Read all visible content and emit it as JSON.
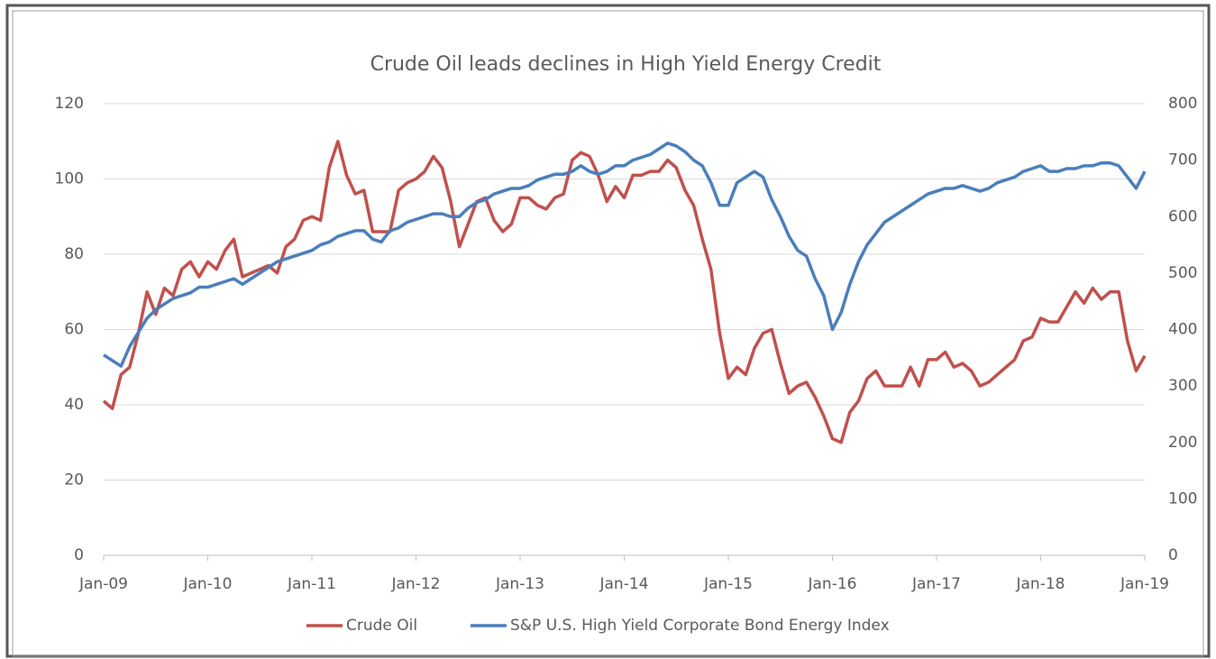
{
  "chart_data": {
    "type": "line",
    "title": "Crude Oil leads declines in High Yield Energy Credit",
    "x": [
      "2009-01",
      "2009-02",
      "2009-03",
      "2009-04",
      "2009-05",
      "2009-06",
      "2009-07",
      "2009-08",
      "2009-09",
      "2009-10",
      "2009-11",
      "2009-12",
      "2010-01",
      "2010-02",
      "2010-03",
      "2010-04",
      "2010-05",
      "2010-06",
      "2010-07",
      "2010-08",
      "2010-09",
      "2010-10",
      "2010-11",
      "2010-12",
      "2011-01",
      "2011-02",
      "2011-03",
      "2011-04",
      "2011-05",
      "2011-06",
      "2011-07",
      "2011-08",
      "2011-09",
      "2011-10",
      "2011-11",
      "2011-12",
      "2012-01",
      "2012-02",
      "2012-03",
      "2012-04",
      "2012-05",
      "2012-06",
      "2012-07",
      "2012-08",
      "2012-09",
      "2012-10",
      "2012-11",
      "2012-12",
      "2013-01",
      "2013-02",
      "2013-03",
      "2013-04",
      "2013-05",
      "2013-06",
      "2013-07",
      "2013-08",
      "2013-09",
      "2013-10",
      "2013-11",
      "2013-12",
      "2014-01",
      "2014-02",
      "2014-03",
      "2014-04",
      "2014-05",
      "2014-06",
      "2014-07",
      "2014-08",
      "2014-09",
      "2014-10",
      "2014-11",
      "2014-12",
      "2015-01",
      "2015-02",
      "2015-03",
      "2015-04",
      "2015-05",
      "2015-06",
      "2015-07",
      "2015-08",
      "2015-09",
      "2015-10",
      "2015-11",
      "2015-12",
      "2016-01",
      "2016-02",
      "2016-03",
      "2016-04",
      "2016-05",
      "2016-06",
      "2016-07",
      "2016-08",
      "2016-09",
      "2016-10",
      "2016-11",
      "2016-12",
      "2017-01",
      "2017-02",
      "2017-03",
      "2017-04",
      "2017-05",
      "2017-06",
      "2017-07",
      "2017-08",
      "2017-09",
      "2017-10",
      "2017-11",
      "2017-12",
      "2018-01",
      "2018-02",
      "2018-03",
      "2018-04",
      "2018-05",
      "2018-06",
      "2018-07",
      "2018-08",
      "2018-09",
      "2018-10",
      "2018-11",
      "2018-12",
      "2019-01"
    ],
    "series": [
      {
        "name": "Crude Oil",
        "color": "#c0504d",
        "axis": "y",
        "values": [
          41,
          39,
          48,
          50,
          59,
          70,
          64,
          71,
          69,
          76,
          78,
          74,
          78,
          76,
          81,
          84,
          74,
          75,
          76,
          77,
          75,
          82,
          84,
          89,
          90,
          89,
          103,
          110,
          101,
          96,
          97,
          86,
          86,
          86,
          97,
          99,
          100,
          102,
          106,
          103,
          94,
          82,
          88,
          94,
          95,
          89,
          86,
          88,
          95,
          95,
          93,
          92,
          95,
          96,
          105,
          107,
          106,
          101,
          94,
          98,
          95,
          101,
          101,
          102,
          102,
          105,
          103,
          97,
          93,
          84,
          76,
          59,
          47,
          50,
          48,
          55,
          59,
          60,
          51,
          43,
          45,
          46,
          42,
          37,
          31,
          30,
          38,
          41,
          47,
          49,
          45,
          45,
          45,
          50,
          45,
          52,
          52,
          54,
          50,
          51,
          49,
          45,
          46,
          48,
          50,
          52,
          57,
          58,
          63,
          62,
          62,
          66,
          70,
          67,
          71,
          68,
          70,
          70,
          57,
          49,
          53
        ]
      },
      {
        "name": "S&P U.S. High Yield Corporate Bond Energy Index",
        "color": "#4a7ebb",
        "axis": "y2",
        "values": [
          355,
          345,
          335,
          370,
          395,
          420,
          435,
          445,
          455,
          460,
          465,
          475,
          475,
          480,
          485,
          490,
          480,
          490,
          500,
          510,
          520,
          525,
          530,
          535,
          540,
          550,
          555,
          565,
          570,
          575,
          575,
          560,
          555,
          575,
          580,
          590,
          595,
          600,
          605,
          605,
          600,
          600,
          615,
          625,
          630,
          640,
          645,
          650,
          650,
          655,
          665,
          670,
          675,
          675,
          680,
          690,
          680,
          675,
          680,
          690,
          690,
          700,
          705,
          710,
          720,
          730,
          725,
          715,
          700,
          690,
          660,
          620,
          620,
          660,
          670,
          680,
          670,
          630,
          600,
          565,
          540,
          530,
          490,
          460,
          400,
          430,
          480,
          520,
          550,
          570,
          590,
          600,
          610,
          620,
          630,
          640,
          645,
          650,
          650,
          655,
          650,
          645,
          650,
          660,
          665,
          670,
          680,
          685,
          690,
          680,
          680,
          685,
          685,
          690,
          690,
          695,
          695,
          690,
          670,
          650,
          680
        ]
      }
    ],
    "xlim": [
      "2009-01",
      "2019-01"
    ],
    "xticks": [
      {
        "value": "2009-01",
        "label": "Jan-09"
      },
      {
        "value": "2010-01",
        "label": "Jan-10"
      },
      {
        "value": "2011-01",
        "label": "Jan-11"
      },
      {
        "value": "2012-01",
        "label": "Jan-12"
      },
      {
        "value": "2013-01",
        "label": "Jan-13"
      },
      {
        "value": "2014-01",
        "label": "Jan-14"
      },
      {
        "value": "2015-01",
        "label": "Jan-15"
      },
      {
        "value": "2016-01",
        "label": "Jan-16"
      },
      {
        "value": "2017-01",
        "label": "Jan-17"
      },
      {
        "value": "2018-01",
        "label": "Jan-18"
      },
      {
        "value": "2019-01",
        "label": "Jan-19"
      }
    ],
    "ylim": [
      0,
      120
    ],
    "yticks": [
      0,
      20,
      40,
      60,
      80,
      100,
      120
    ],
    "y2lim": [
      0,
      800
    ],
    "y2ticks": [
      0,
      100,
      200,
      300,
      400,
      500,
      600,
      700,
      800
    ],
    "grid": true,
    "legend": "bottom"
  }
}
